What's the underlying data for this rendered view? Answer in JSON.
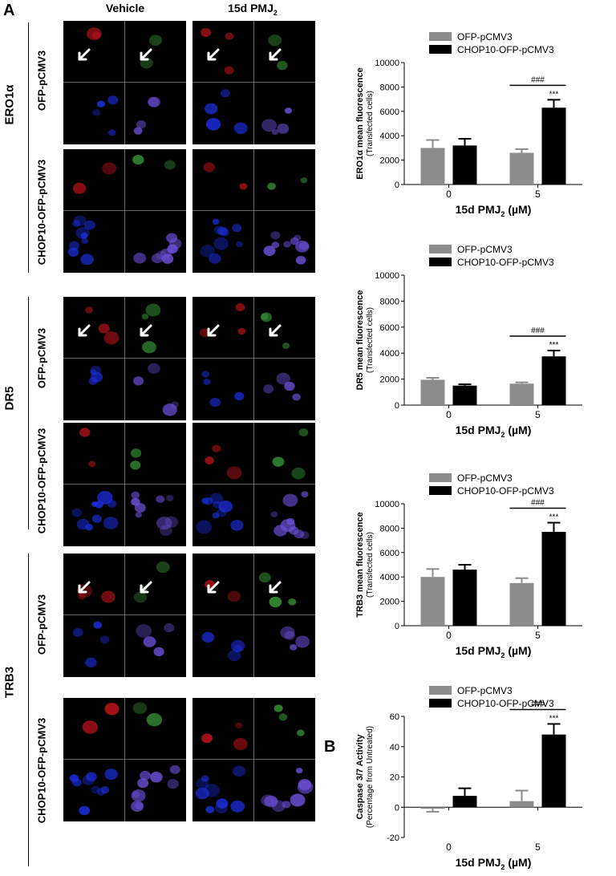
{
  "panels": {
    "a": "A",
    "b": "B"
  },
  "columns": {
    "vehicle": "Vehicle",
    "treated": "15d PMJ",
    "treated_sub": "2"
  },
  "groups": [
    {
      "label": "ERO1α",
      "rows": [
        "OFP-pCMV3",
        "CHOP10-OFP-pCMV3"
      ]
    },
    {
      "label": "DR5",
      "rows": [
        "OFP-pCMV3",
        "CHOP10-OFP-pCMV3"
      ]
    },
    {
      "label": "TRB3",
      "rows": [
        "OFP-pCMV3",
        "CHOP10-OFP-pCMV3"
      ]
    }
  ],
  "colors": {
    "ofp": "#8c8c8c",
    "chop": "#000000"
  },
  "chart_data": [
    {
      "type": "bar",
      "categories": [
        "0",
        "5"
      ],
      "series": [
        {
          "name": "OFP-pCMV3",
          "values": [
            3000,
            2600
          ],
          "errors": [
            650,
            300
          ]
        },
        {
          "name": "CHOP10-OFP-pCMV3",
          "values": [
            3200,
            6300
          ],
          "errors": [
            550,
            650
          ]
        }
      ],
      "ylabel": "ERO1α mean fluorescence",
      "ylabel2": "(Transfected cells)",
      "xlabel": "15d PMJ",
      "xlabel_sub": "2",
      "xlabel_unit": "(µM)",
      "ylim": [
        0,
        10000
      ],
      "yticks": [
        0,
        2000,
        4000,
        6000,
        8000,
        10000
      ],
      "annotations": {
        "hash": "###",
        "stars": "***"
      },
      "legend": "top"
    },
    {
      "type": "bar",
      "categories": [
        "0",
        "5"
      ],
      "series": [
        {
          "name": "OFP-pCMV3",
          "values": [
            1950,
            1650
          ],
          "errors": [
            150,
            100
          ]
        },
        {
          "name": "CHOP10-OFP-pCMV3",
          "values": [
            1500,
            3750
          ],
          "errors": [
            100,
            450
          ]
        }
      ],
      "ylabel": "DR5 mean fluorescence",
      "ylabel2": "(Transfected cells)",
      "xlabel": "15d PMJ",
      "xlabel_sub": "2",
      "xlabel_unit": "(µM)",
      "ylim": [
        0,
        10000
      ],
      "yticks": [
        0,
        2000,
        4000,
        6000,
        8000,
        10000
      ],
      "annotations": {
        "hash": "###",
        "stars": "***"
      },
      "legend": "top"
    },
    {
      "type": "bar",
      "categories": [
        "0",
        "5"
      ],
      "series": [
        {
          "name": "OFP-pCMV3",
          "values": [
            4000,
            3500
          ],
          "errors": [
            650,
            400
          ]
        },
        {
          "name": "CHOP10-OFP-pCMV3",
          "values": [
            4600,
            7700
          ],
          "errors": [
            400,
            750
          ]
        }
      ],
      "ylabel": "TRB3 mean fluorescence",
      "ylabel2": "(Transfected cells)",
      "xlabel": "15d PMJ",
      "xlabel_sub": "2",
      "xlabel_unit": "(µM)",
      "ylim": [
        0,
        10000
      ],
      "yticks": [
        0,
        2000,
        4000,
        6000,
        8000,
        10000
      ],
      "annotations": {
        "hash": "###",
        "stars": "***"
      },
      "legend": "top"
    },
    {
      "type": "bar",
      "categories": [
        "0",
        "5"
      ],
      "series": [
        {
          "name": "OFP-pCMV3",
          "values": [
            -1,
            4
          ],
          "errors": [
            2,
            7
          ]
        },
        {
          "name": "CHOP10-OFP-pCMV3",
          "values": [
            7.5,
            48
          ],
          "errors": [
            5,
            7
          ]
        }
      ],
      "ylabel": "Caspase 3/7 Activity",
      "ylabel2": "(Percentage from Untreated)",
      "xlabel": "15d PMJ",
      "xlabel_sub": "2",
      "xlabel_unit": "(µM)",
      "ylim": [
        -20,
        60
      ],
      "yticks": [
        -20,
        0,
        20,
        40,
        60
      ],
      "annotations": {
        "hash": "###",
        "stars": "***"
      },
      "legend": "top"
    }
  ]
}
